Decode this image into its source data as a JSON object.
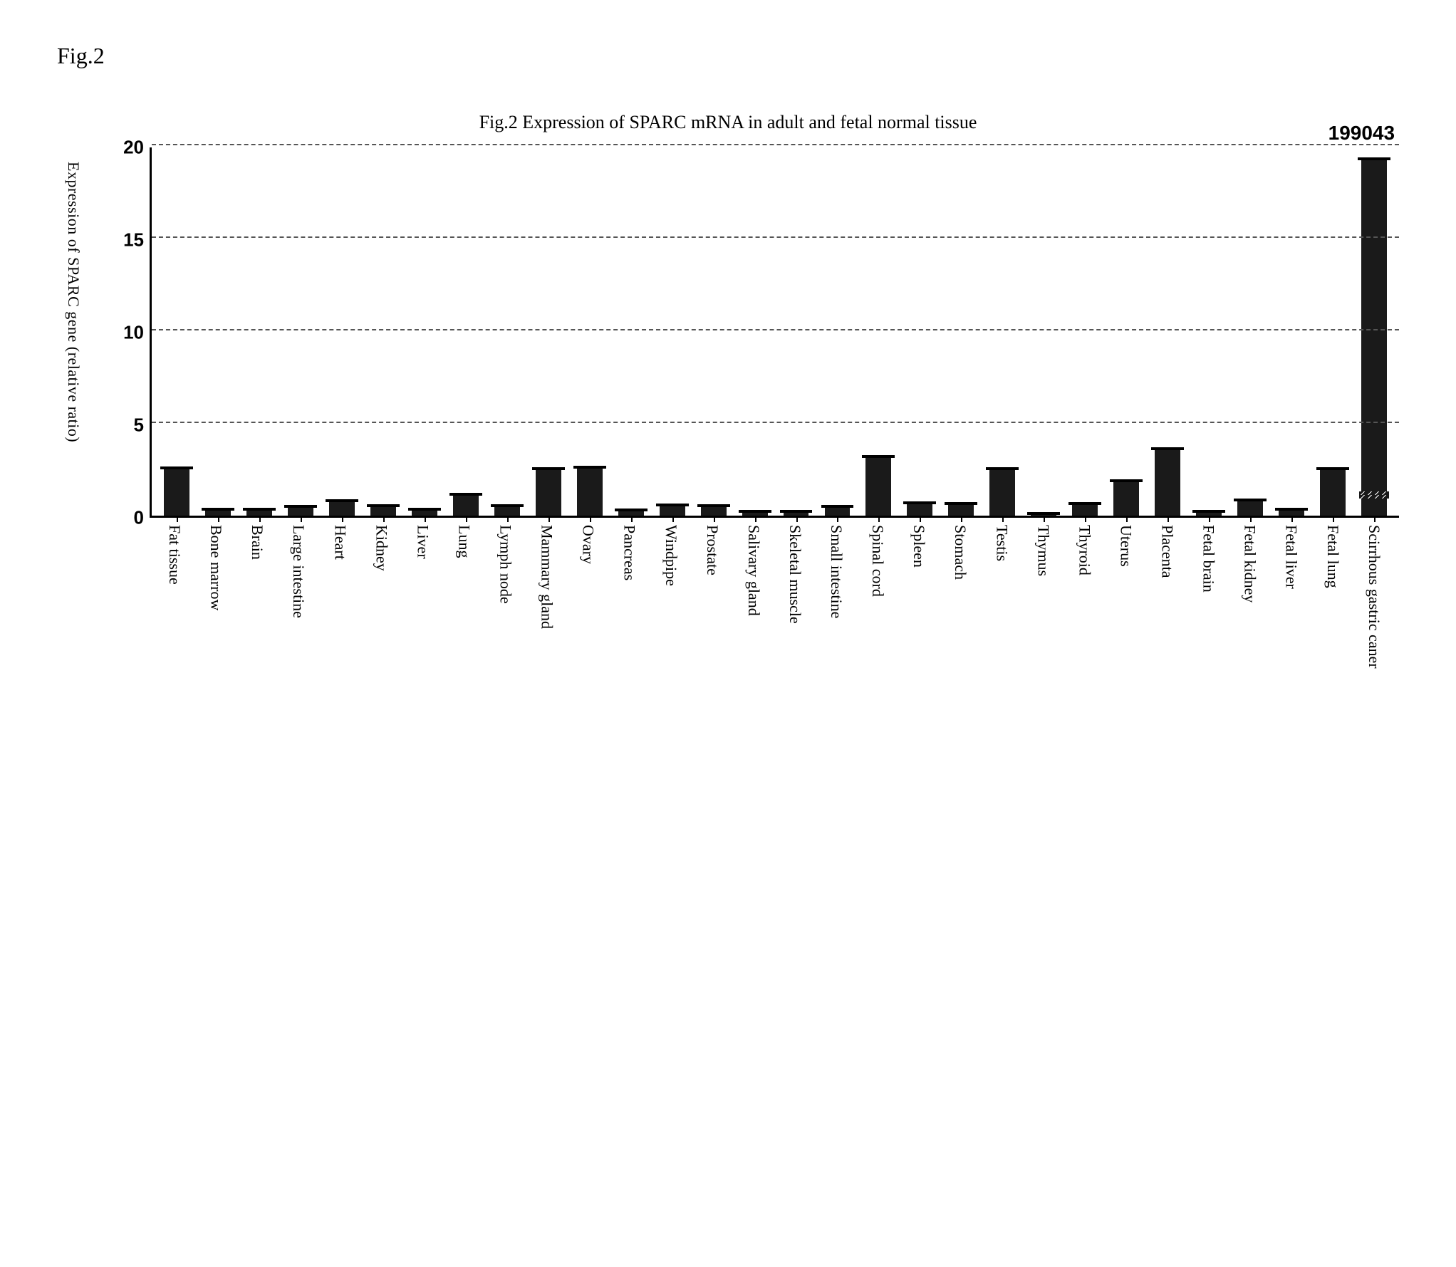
{
  "figure_label": "Fig.2",
  "chart": {
    "type": "bar",
    "title": "Fig.2  Expression of SPARC mRNA in adult and fetal normal tissue",
    "y_axis_label": "Expression of SPARC gene (relative ratio)",
    "ylim": [
      0,
      20
    ],
    "yticks": [
      0,
      5,
      10,
      15,
      20
    ],
    "ytick_step": 5,
    "grid_values": [
      5,
      10,
      15,
      20
    ],
    "grid_color": "#555555",
    "grid_dash": true,
    "background_color": "#ffffff",
    "bar_color": "#1a1a1a",
    "axis_color": "#000000",
    "bar_width": 0.62,
    "label_font": "Times New Roman",
    "tick_font": "Arial",
    "title_fontsize": 26,
    "ytick_fontsize": 26,
    "xlabel_fontsize": 22,
    "yaxis_label_fontsize": 22,
    "categories": [
      "Fat tissue",
      "Bone marrow",
      "Brain",
      "Large intestine",
      "Heart",
      "Kidney",
      "Liver",
      "Lung",
      "Lymph node",
      "Mammary gland",
      "Ovary",
      "Pancreas",
      "Windpipe",
      "Prostate",
      "Salivary gland",
      "Skeletal muscle",
      "Small intestine",
      "Spinal cord",
      "Spleen",
      "Stomach",
      "Testis",
      "Thymus",
      "Thyroid",
      "Uterus",
      "Placenta",
      "Fetal brain",
      "Fetal kidney",
      "Fetal liver",
      "Fetal lung",
      "Scirrhous gastric caner"
    ],
    "values": [
      2.6,
      0.35,
      0.35,
      0.5,
      0.8,
      0.55,
      0.35,
      1.15,
      0.55,
      2.55,
      2.65,
      0.3,
      0.6,
      0.55,
      0.25,
      0.25,
      0.5,
      3.2,
      0.7,
      0.65,
      2.55,
      0.1,
      0.65,
      1.9,
      3.65,
      0.25,
      0.85,
      0.35,
      2.55,
      199043
    ],
    "broken_axis_index": 29,
    "outlier_label": "199043",
    "outlier_display_height": 19.4,
    "has_error_caps": true
  }
}
